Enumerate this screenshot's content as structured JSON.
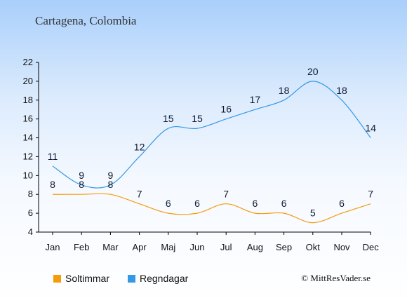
{
  "chart_data": {
    "type": "line",
    "title": "Cartagena, Colombia",
    "categories": [
      "Jan",
      "Feb",
      "Mar",
      "Apr",
      "Maj",
      "Jun",
      "Jul",
      "Aug",
      "Sep",
      "Okt",
      "Nov",
      "Dec"
    ],
    "y_ticks": [
      "4",
      "6",
      "8",
      "10",
      "12",
      "14",
      "16",
      "18",
      "20",
      "22"
    ],
    "ylim": [
      4,
      22
    ],
    "grid": false,
    "legend_position": "bottom-left",
    "series": [
      {
        "name": "Soltimmar",
        "color": "#f59c0b",
        "values": [
          8,
          8,
          8,
          7,
          6,
          6,
          7,
          6,
          6,
          5,
          6,
          7
        ]
      },
      {
        "name": "Regndagar",
        "color": "#3398e6",
        "values": [
          11,
          9,
          9,
          12,
          15,
          15,
          16,
          17,
          18,
          20,
          18,
          14
        ]
      }
    ]
  },
  "footer": {
    "copyright": "© MittResVader.se"
  }
}
